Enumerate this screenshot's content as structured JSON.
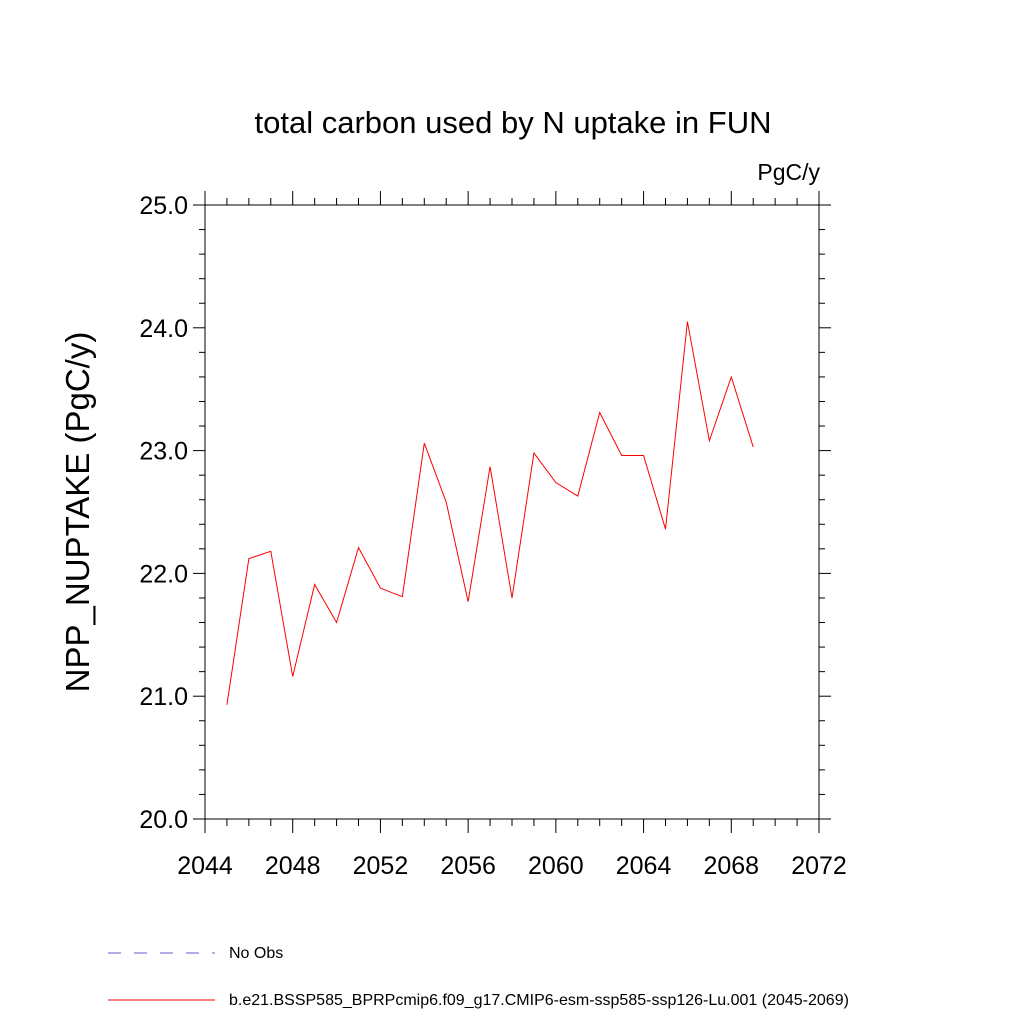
{
  "chart_data": {
    "type": "line",
    "title": "total carbon used by N uptake in FUN",
    "units": "PgC/y",
    "xlabel": "",
    "ylabel": "NPP_NUPTAKE  (PgC/y)",
    "xlim": [
      2044,
      2072
    ],
    "ylim": [
      20.0,
      25.0
    ],
    "x_ticks": [
      2044,
      2048,
      2052,
      2056,
      2060,
      2064,
      2068,
      2072
    ],
    "x_tick_labels": [
      "2044",
      "2048",
      "2052",
      "2056",
      "2060",
      "2064",
      "2068",
      "2072"
    ],
    "y_ticks": [
      20.0,
      21.0,
      22.0,
      23.0,
      24.0,
      25.0
    ],
    "y_tick_labels": [
      "20.0",
      "21.0",
      "22.0",
      "23.0",
      "24.0",
      "25.0"
    ],
    "grid": false,
    "legend_placement": "bottom-left",
    "series": [
      {
        "name": "No Obs",
        "color": "#6a5acd",
        "style": "dashed",
        "x": [],
        "y": []
      },
      {
        "name": "b.e21.BSSP585_BPRPcmip6.f09_g17.CMIP6-esm-ssp585-ssp126-Lu.001 (2045-2069)",
        "color": "#ff0000",
        "style": "solid",
        "x": [
          2045,
          2046,
          2047,
          2048,
          2049,
          2050,
          2051,
          2052,
          2053,
          2054,
          2055,
          2056,
          2057,
          2058,
          2059,
          2060,
          2061,
          2062,
          2063,
          2064,
          2065,
          2066,
          2067,
          2068,
          2069
        ],
        "y": [
          20.93,
          22.12,
          22.18,
          21.16,
          21.91,
          21.6,
          22.21,
          21.88,
          21.81,
          23.06,
          22.58,
          21.77,
          22.87,
          21.8,
          22.98,
          22.74,
          22.63,
          23.31,
          22.96,
          22.96,
          22.36,
          24.05,
          23.08,
          23.6,
          23.03
        ]
      }
    ]
  }
}
